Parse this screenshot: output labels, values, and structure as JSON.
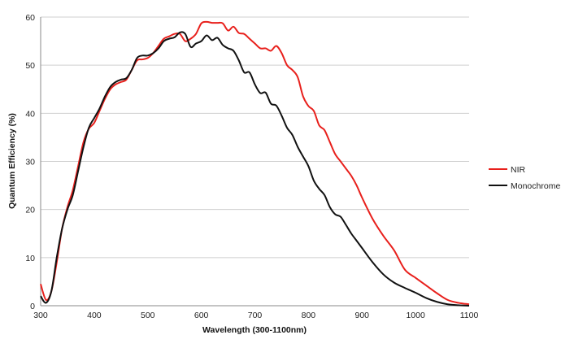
{
  "chart_data": {
    "type": "line",
    "title": "",
    "xlabel": "Wavelength (300-1100nm)",
    "ylabel": "Quantum Efficiency (%)",
    "xlim": [
      300,
      1100
    ],
    "ylim": [
      0,
      60
    ],
    "x_ticks": [
      "300",
      "400",
      "500",
      "600",
      "700",
      "800",
      "900",
      "1000",
      "1100"
    ],
    "y_ticks": [
      "0",
      "10",
      "20",
      "30",
      "40",
      "50",
      "60"
    ],
    "grid": "horizontal",
    "legend_position": "right",
    "series": [
      {
        "name": "NIR",
        "color": "#e8201c",
        "x": [
          300,
          310,
          320,
          330,
          340,
          350,
          360,
          370,
          380,
          390,
          400,
          410,
          420,
          430,
          440,
          450,
          460,
          470,
          480,
          490,
          500,
          510,
          520,
          530,
          540,
          550,
          560,
          570,
          580,
          590,
          600,
          610,
          620,
          630,
          640,
          650,
          660,
          670,
          680,
          690,
          700,
          710,
          720,
          730,
          740,
          750,
          760,
          770,
          780,
          790,
          800,
          810,
          820,
          830,
          840,
          850,
          860,
          870,
          880,
          890,
          900,
          920,
          940,
          960,
          980,
          1000,
          1020,
          1040,
          1060,
          1080,
          1100
        ],
        "values": [
          4.5,
          1.2,
          3,
          9,
          16,
          20.5,
          24,
          29,
          34,
          36.8,
          38,
          40.5,
          43,
          45,
          46,
          46.5,
          47,
          49,
          51,
          51.2,
          51.5,
          52.5,
          54,
          55.5,
          56,
          56.5,
          56.5,
          55,
          55.5,
          56.5,
          58.7,
          59,
          58.8,
          58.8,
          58.7,
          57.2,
          58,
          56.7,
          56.5,
          55.5,
          54.5,
          53.5,
          53.5,
          53,
          54,
          52.5,
          50,
          49,
          47.5,
          43.5,
          41.5,
          40.5,
          37.5,
          36.5,
          34,
          31.5,
          30,
          28.5,
          27,
          25,
          22.5,
          18,
          14.5,
          11.5,
          7.5,
          5.8,
          4.2,
          2.6,
          1.2,
          0.6,
          0.3
        ]
      },
      {
        "name": "Monochrome",
        "color": "#111111",
        "x": [
          300,
          310,
          320,
          330,
          340,
          350,
          360,
          370,
          380,
          390,
          400,
          410,
          420,
          430,
          440,
          450,
          460,
          470,
          480,
          490,
          500,
          510,
          520,
          530,
          540,
          550,
          560,
          570,
          580,
          590,
          600,
          610,
          620,
          630,
          640,
          650,
          660,
          670,
          680,
          690,
          700,
          710,
          720,
          730,
          740,
          750,
          760,
          770,
          780,
          790,
          800,
          810,
          820,
          830,
          840,
          850,
          860,
          870,
          880,
          890,
          900,
          920,
          940,
          960,
          980,
          1000,
          1020,
          1040,
          1060,
          1080,
          1100
        ],
        "values": [
          2,
          0.6,
          3,
          10,
          16,
          20,
          23,
          28,
          33,
          37,
          39,
          41,
          43.5,
          45.5,
          46.5,
          47,
          47.3,
          49,
          51.5,
          52,
          52,
          52.5,
          53.5,
          55,
          55.5,
          55.8,
          56.8,
          56.5,
          53.8,
          54.5,
          55,
          56.2,
          55.2,
          55.7,
          54.2,
          53.5,
          53,
          51,
          48.5,
          48.5,
          46,
          44.2,
          44.3,
          42,
          41.6,
          39.5,
          37,
          35.5,
          33,
          31,
          29,
          26,
          24.3,
          23,
          20.5,
          19,
          18.5,
          16.8,
          15,
          13.5,
          12,
          9,
          6.5,
          4.8,
          3.7,
          2.7,
          1.6,
          0.8,
          0.3,
          0.1,
          0
        ]
      }
    ]
  }
}
